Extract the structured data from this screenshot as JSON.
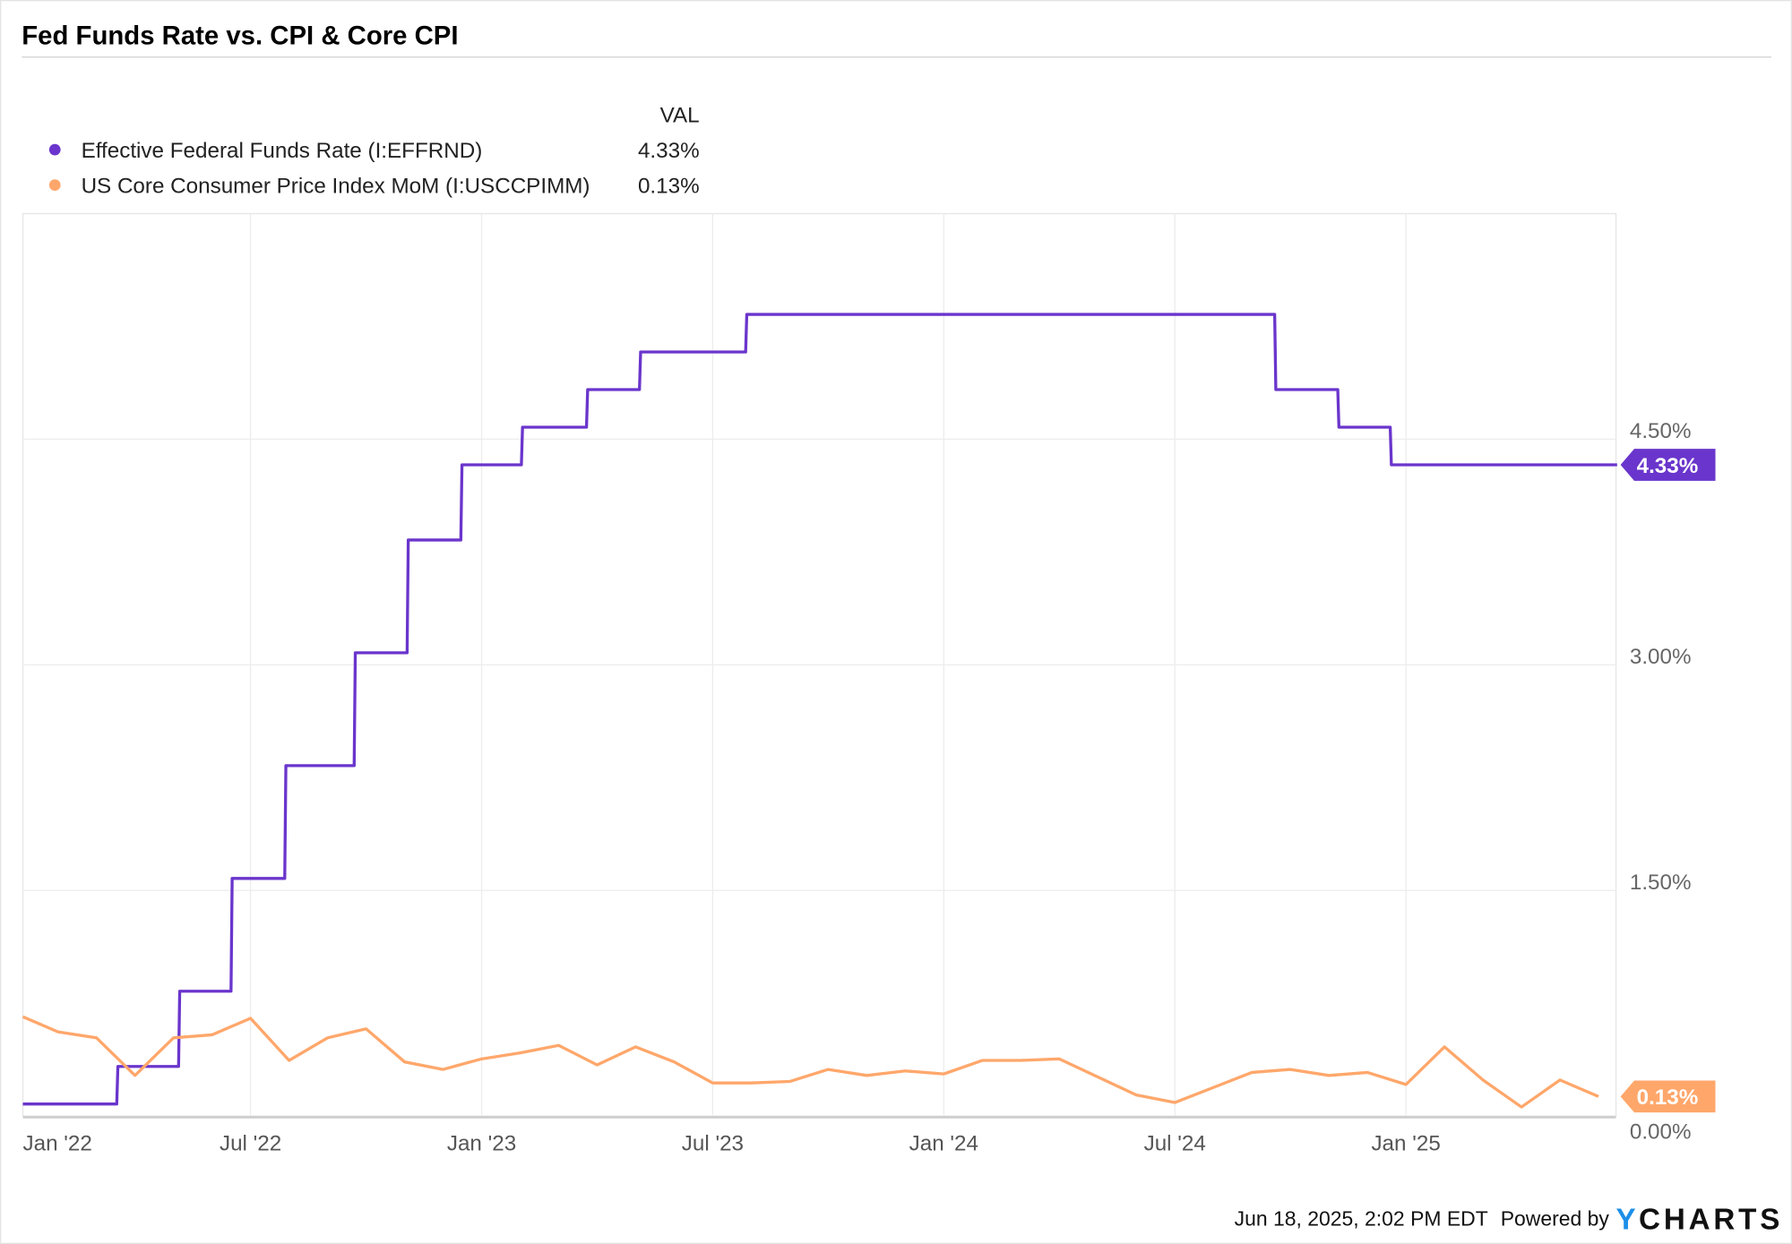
{
  "title": "Fed Funds Rate vs. CPI & Core CPI",
  "legend": {
    "value_header": "VAL",
    "items": [
      {
        "label": "Effective Federal Funds Rate (I:EFFRND)",
        "value": "4.33%",
        "color": "#6a35cc"
      },
      {
        "label": "US Core Consumer Price Index MoM (I:USCCPIMM)",
        "value": "0.13%",
        "color": "#ffa76b"
      }
    ]
  },
  "footer": {
    "timestamp": "Jun 18, 2025, 2:02 PM EDT",
    "powered_by": "Powered by",
    "brand_y": "Y",
    "brand_rest": "CHARTS",
    "brand_color": "#1d8fe8"
  },
  "chart_data": {
    "type": "line",
    "title": "Fed Funds Rate vs. CPI & Core CPI",
    "ylim": [
      0,
      6
    ],
    "y_ticks": [
      "0.00%",
      "1.50%",
      "3.00%",
      "4.50%"
    ],
    "y_tick_values": [
      0,
      1.5,
      3.0,
      4.5
    ],
    "x_ticks": [
      "Jan '22",
      "Jul '22",
      "Jan '23",
      "Jul '23",
      "Jan '24",
      "Jul '24",
      "Jan '25"
    ],
    "x_tick_dates": [
      "2022-01-01",
      "2022-07-01",
      "2023-01-01",
      "2023-07-01",
      "2024-01-01",
      "2024-07-01",
      "2025-01-01"
    ],
    "xlim": [
      "2022-01-03",
      "2025-06-18"
    ],
    "grid": true,
    "y_axis_side": "right",
    "legend_placement": "top-left",
    "series": [
      {
        "name": "Effective Federal Funds Rate (I:EFFRND)",
        "color": "#6a35cc",
        "step": true,
        "last_value_label": "4.33%",
        "points": [
          [
            "2022-01-03",
            0.08
          ],
          [
            "2022-03-17",
            0.33
          ],
          [
            "2022-05-05",
            0.83
          ],
          [
            "2022-06-16",
            1.58
          ],
          [
            "2022-07-28",
            2.33
          ],
          [
            "2022-09-22",
            3.08
          ],
          [
            "2022-11-03",
            3.83
          ],
          [
            "2022-12-15",
            4.33
          ],
          [
            "2023-02-02",
            4.58
          ],
          [
            "2023-03-23",
            4.83
          ],
          [
            "2023-05-04",
            5.08
          ],
          [
            "2023-07-27",
            5.33
          ],
          [
            "2024-09-19",
            4.83
          ],
          [
            "2024-11-08",
            4.58
          ],
          [
            "2024-12-19",
            4.33
          ],
          [
            "2025-06-18",
            4.33
          ]
        ]
      },
      {
        "name": "US Core Consumer Price Index MoM (I:USCCPIMM)",
        "color": "#ffa76b",
        "step": false,
        "last_value_label": "0.13%",
        "points": [
          [
            "2022-01",
            0.66
          ],
          [
            "2022-02",
            0.56
          ],
          [
            "2022-03",
            0.52
          ],
          [
            "2022-04",
            0.27
          ],
          [
            "2022-05",
            0.52
          ],
          [
            "2022-06",
            0.54
          ],
          [
            "2022-07",
            0.65
          ],
          [
            "2022-08",
            0.37
          ],
          [
            "2022-09",
            0.52
          ],
          [
            "2022-10",
            0.58
          ],
          [
            "2022-11",
            0.36
          ],
          [
            "2022-12",
            0.31
          ],
          [
            "2023-01",
            0.38
          ],
          [
            "2023-02",
            0.42
          ],
          [
            "2023-03",
            0.47
          ],
          [
            "2023-04",
            0.34
          ],
          [
            "2023-05",
            0.46
          ],
          [
            "2023-06",
            0.36
          ],
          [
            "2023-07",
            0.22
          ],
          [
            "2023-08",
            0.22
          ],
          [
            "2023-09",
            0.23
          ],
          [
            "2023-10",
            0.31
          ],
          [
            "2023-11",
            0.27
          ],
          [
            "2023-12",
            0.3
          ],
          [
            "2024-01",
            0.28
          ],
          [
            "2024-02",
            0.37
          ],
          [
            "2024-03",
            0.37
          ],
          [
            "2024-04",
            0.38
          ],
          [
            "2024-05",
            0.26
          ],
          [
            "2024-06",
            0.14
          ],
          [
            "2024-07",
            0.09
          ],
          [
            "2024-08",
            0.19
          ],
          [
            "2024-09",
            0.29
          ],
          [
            "2024-10",
            0.31
          ],
          [
            "2024-11",
            0.27
          ],
          [
            "2024-12",
            0.29
          ],
          [
            "2025-01",
            0.21
          ],
          [
            "2025-02",
            0.46
          ],
          [
            "2025-03",
            0.24
          ],
          [
            "2025-04",
            0.06
          ],
          [
            "2025-05",
            0.24
          ],
          [
            "2025-06",
            0.13
          ]
        ]
      }
    ]
  }
}
